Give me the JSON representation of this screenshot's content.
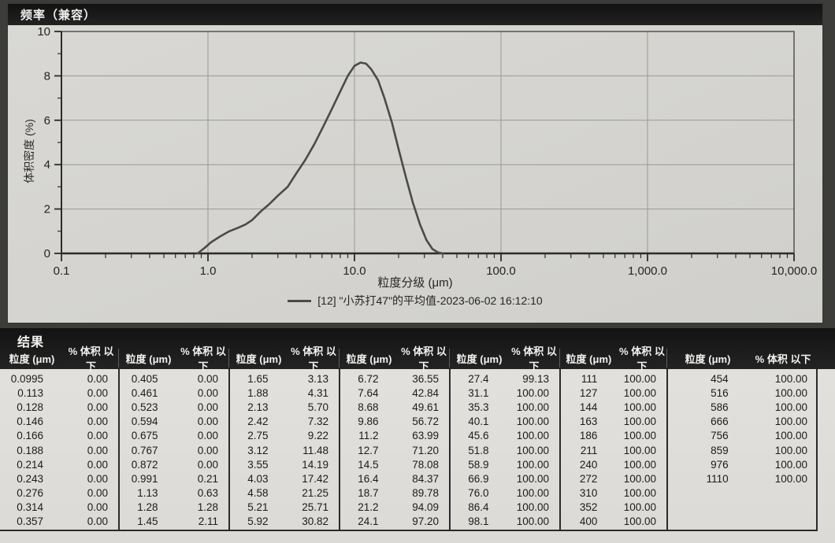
{
  "header": {
    "title": "频率（兼容）"
  },
  "chart_data": {
    "type": "line",
    "title": "频率（兼容）",
    "xlabel": "粒度分级 (μm)",
    "ylabel": "体积密度 (%)",
    "x_scale": "log",
    "xlim": [
      0.1,
      10000
    ],
    "ylim": [
      0,
      10
    ],
    "x_ticks": [
      "0.1",
      "1.0",
      "10.0",
      "100.0",
      "1,000.0",
      "10,000.0"
    ],
    "x_tick_values": [
      0.1,
      1,
      10,
      100,
      1000,
      10000
    ],
    "y_ticks": [
      0,
      2,
      4,
      6,
      8,
      10
    ],
    "grid": true,
    "legend": "[12] \"小苏打47\"的平均值-2023-06-02 16:12:10",
    "legend_position": "bottom",
    "series": [
      {
        "name": "[12] \"小苏打47\"的平均值-2023-06-02 16:12:10",
        "x": [
          0.85,
          0.95,
          1.05,
          1.2,
          1.4,
          1.6,
          1.8,
          2.0,
          2.3,
          2.6,
          3.0,
          3.5,
          4.0,
          4.6,
          5.3,
          6.1,
          7.0,
          8.0,
          9.0,
          10.0,
          11.0,
          12.0,
          13.0,
          14.5,
          16.0,
          18.0,
          20.0,
          22.5,
          25.0,
          28.0,
          31.0,
          34.0,
          37.0,
          40.0
        ],
        "y": [
          0,
          0.25,
          0.5,
          0.75,
          1.0,
          1.15,
          1.3,
          1.5,
          1.9,
          2.2,
          2.6,
          3.0,
          3.6,
          4.2,
          4.9,
          5.7,
          6.5,
          7.3,
          8.0,
          8.45,
          8.6,
          8.55,
          8.3,
          7.8,
          7.0,
          5.9,
          4.7,
          3.4,
          2.3,
          1.3,
          0.6,
          0.2,
          0.05,
          0
        ]
      }
    ]
  },
  "results": {
    "title": "结果",
    "col_size": "粒度 (μm)",
    "col_pct": "% 体积 以下",
    "groups": [
      [
        [
          "0.0995",
          "0.00"
        ],
        [
          "0.113",
          "0.00"
        ],
        [
          "0.128",
          "0.00"
        ],
        [
          "0.146",
          "0.00"
        ],
        [
          "0.166",
          "0.00"
        ],
        [
          "0.188",
          "0.00"
        ],
        [
          "0.214",
          "0.00"
        ],
        [
          "0.243",
          "0.00"
        ],
        [
          "0.276",
          "0.00"
        ],
        [
          "0.314",
          "0.00"
        ],
        [
          "0.357",
          "0.00"
        ]
      ],
      [
        [
          "0.405",
          "0.00"
        ],
        [
          "0.461",
          "0.00"
        ],
        [
          "0.523",
          "0.00"
        ],
        [
          "0.594",
          "0.00"
        ],
        [
          "0.675",
          "0.00"
        ],
        [
          "0.767",
          "0.00"
        ],
        [
          "0.872",
          "0.00"
        ],
        [
          "0.991",
          "0.21"
        ],
        [
          "1.13",
          "0.63"
        ],
        [
          "1.28",
          "1.28"
        ],
        [
          "1.45",
          "2.11"
        ]
      ],
      [
        [
          "1.65",
          "3.13"
        ],
        [
          "1.88",
          "4.31"
        ],
        [
          "2.13",
          "5.70"
        ],
        [
          "2.42",
          "7.32"
        ],
        [
          "2.75",
          "9.22"
        ],
        [
          "3.12",
          "11.48"
        ],
        [
          "3.55",
          "14.19"
        ],
        [
          "4.03",
          "17.42"
        ],
        [
          "4.58",
          "21.25"
        ],
        [
          "5.21",
          "25.71"
        ],
        [
          "5.92",
          "30.82"
        ]
      ],
      [
        [
          "6.72",
          "36.55"
        ],
        [
          "7.64",
          "42.84"
        ],
        [
          "8.68",
          "49.61"
        ],
        [
          "9.86",
          "56.72"
        ],
        [
          "11.2",
          "63.99"
        ],
        [
          "12.7",
          "71.20"
        ],
        [
          "14.5",
          "78.08"
        ],
        [
          "16.4",
          "84.37"
        ],
        [
          "18.7",
          "89.78"
        ],
        [
          "21.2",
          "94.09"
        ],
        [
          "24.1",
          "97.20"
        ]
      ],
      [
        [
          "27.4",
          "99.13"
        ],
        [
          "31.1",
          "100.00"
        ],
        [
          "35.3",
          "100.00"
        ],
        [
          "40.1",
          "100.00"
        ],
        [
          "45.6",
          "100.00"
        ],
        [
          "51.8",
          "100.00"
        ],
        [
          "58.9",
          "100.00"
        ],
        [
          "66.9",
          "100.00"
        ],
        [
          "76.0",
          "100.00"
        ],
        [
          "86.4",
          "100.00"
        ],
        [
          "98.1",
          "100.00"
        ]
      ],
      [
        [
          "111",
          "100.00"
        ],
        [
          "127",
          "100.00"
        ],
        [
          "144",
          "100.00"
        ],
        [
          "163",
          "100.00"
        ],
        [
          "186",
          "100.00"
        ],
        [
          "211",
          "100.00"
        ],
        [
          "240",
          "100.00"
        ],
        [
          "272",
          "100.00"
        ],
        [
          "310",
          "100.00"
        ],
        [
          "352",
          "100.00"
        ],
        [
          "400",
          "100.00"
        ]
      ],
      [
        [
          "454",
          "100.00"
        ],
        [
          "516",
          "100.00"
        ],
        [
          "586",
          "100.00"
        ],
        [
          "666",
          "100.00"
        ],
        [
          "756",
          "100.00"
        ],
        [
          "859",
          "100.00"
        ],
        [
          "976",
          "100.00"
        ],
        [
          "1110",
          "100.00"
        ]
      ]
    ]
  }
}
